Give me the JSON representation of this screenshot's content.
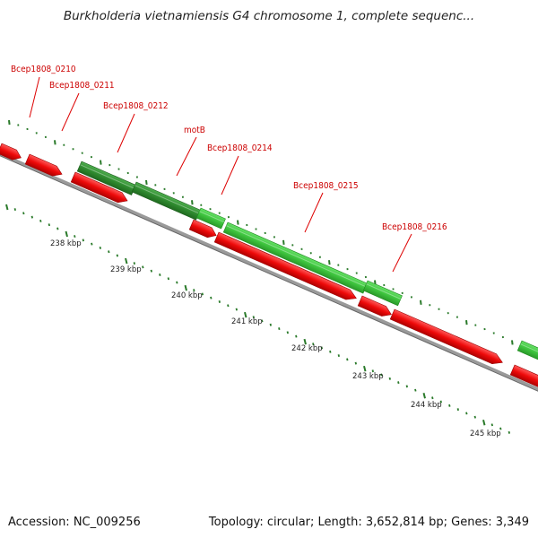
{
  "title": "Burkholderia vietnamiensis G4 chromosome 1, complete sequenc...",
  "footer": {
    "accession": "Accession: NC_009256",
    "summary": "Topology: circular; Length: 3,652,814 bp; Genes: 3,349"
  },
  "colors": {
    "forward_gene_dark": "#2e8b2e",
    "forward_gene_light": "#33cc33",
    "reverse_gene": "#ee0000",
    "backbone": "#888888",
    "ticks": "#2a7a2a",
    "label": "#cc0000"
  },
  "genes": [
    {
      "label": "",
      "strand": "-",
      "shade": "red"
    },
    {
      "label": "Bcep1808_0210",
      "strand": "-",
      "shade": "red"
    },
    {
      "label": "Bcep1808_0211",
      "strand": "+",
      "shade": "dark"
    },
    {
      "label": "Bcep1808_0212",
      "strand": "-",
      "shade": "red"
    },
    {
      "label": "motB",
      "strand": "+",
      "shade": "dark"
    },
    {
      "label": "Bcep1808_0214",
      "strand": "+",
      "shade": "light"
    },
    {
      "label": "",
      "strand": "-",
      "shade": "red"
    },
    {
      "label": "Bcep1808_0215",
      "strand": "+",
      "shade": "light"
    },
    {
      "label": "",
      "strand": "-",
      "shade": "red"
    },
    {
      "label": "Bcep1808_0216",
      "strand": "+",
      "shade": "light"
    }
  ],
  "scale_labels": [
    "238 kbp",
    "239 kbp",
    "240 kbp",
    "241 kbp",
    "242 kbp",
    "243 kbp",
    "244 kbp",
    "245 kbp"
  ]
}
